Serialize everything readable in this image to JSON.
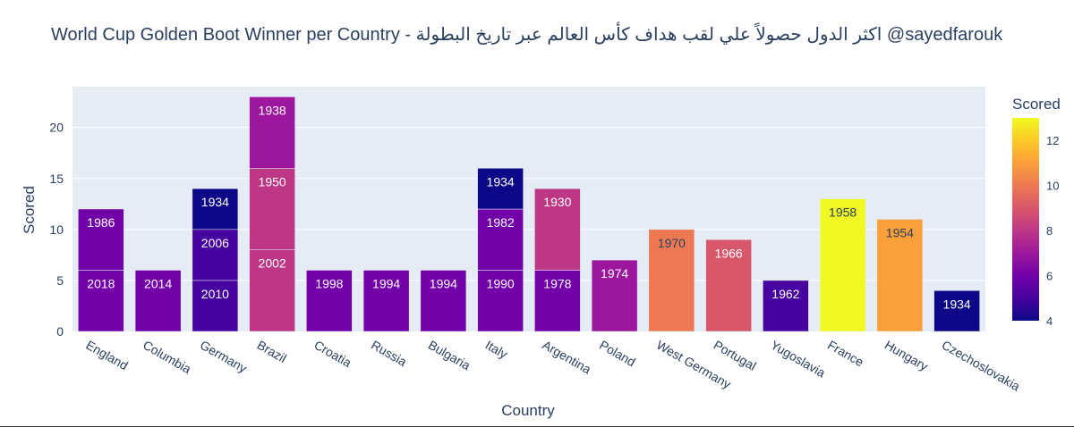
{
  "chart_data": {
    "type": "bar",
    "barmode": "stack",
    "title": "World Cup Golden Boot Winner per Country - اكثر الدول حصولاً علي لقب هداف كأس العالم عبر تاريخ البطولة @sayedfarouk",
    "xlabel": "Country",
    "ylabel": "Scored",
    "ylim": [
      0,
      24
    ],
    "yticks": [
      0,
      5,
      10,
      15,
      20
    ],
    "grid": true,
    "colorbar": {
      "title": "Scored",
      "min": 4,
      "max": 13,
      "ticks": [
        4,
        6,
        8,
        10,
        12
      ],
      "colorscale": "plasma"
    },
    "categories": [
      "England",
      "Columbia",
      "Germany",
      "Brazil",
      "Croatia",
      "Russia",
      "Bulgaria",
      "Italy",
      "Argentina",
      "Poland",
      "West Germany",
      "Portugal",
      "Yugoslavia",
      "France",
      "Hungary",
      "Czechoslovakia"
    ],
    "bars": [
      {
        "country": "England",
        "segments": [
          {
            "year": "2018",
            "value": 6
          },
          {
            "year": "1986",
            "value": 6
          }
        ]
      },
      {
        "country": "Columbia",
        "segments": [
          {
            "year": "2014",
            "value": 6
          }
        ]
      },
      {
        "country": "Germany",
        "segments": [
          {
            "year": "2010",
            "value": 5
          },
          {
            "year": "2006",
            "value": 5
          },
          {
            "year": "1934",
            "value": 4
          }
        ]
      },
      {
        "country": "Brazil",
        "segments": [
          {
            "year": "2002",
            "value": 8
          },
          {
            "year": "1950",
            "value": 8
          },
          {
            "year": "1938",
            "value": 7
          }
        ]
      },
      {
        "country": "Croatia",
        "segments": [
          {
            "year": "1998",
            "value": 6
          }
        ]
      },
      {
        "country": "Russia",
        "segments": [
          {
            "year": "1994",
            "value": 6
          }
        ]
      },
      {
        "country": "Bulgaria",
        "segments": [
          {
            "year": "1994",
            "value": 6
          }
        ]
      },
      {
        "country": "Italy",
        "segments": [
          {
            "year": "1990",
            "value": 6
          },
          {
            "year": "1982",
            "value": 6
          },
          {
            "year": "1934",
            "value": 4
          }
        ]
      },
      {
        "country": "Argentina",
        "segments": [
          {
            "year": "1978",
            "value": 6
          },
          {
            "year": "1930",
            "value": 8
          }
        ]
      },
      {
        "country": "Poland",
        "segments": [
          {
            "year": "1974",
            "value": 7
          }
        ]
      },
      {
        "country": "West Germany",
        "segments": [
          {
            "year": "1970",
            "value": 10
          }
        ]
      },
      {
        "country": "Portugal",
        "segments": [
          {
            "year": "1966",
            "value": 9
          }
        ]
      },
      {
        "country": "Yugoslavia",
        "segments": [
          {
            "year": "1962",
            "value": 5
          }
        ]
      },
      {
        "country": "France",
        "segments": [
          {
            "year": "1958",
            "value": 13
          }
        ]
      },
      {
        "country": "Hungary",
        "segments": [
          {
            "year": "1954",
            "value": 11
          }
        ]
      },
      {
        "country": "Czechoslovakia",
        "segments": [
          {
            "year": "1934",
            "value": 4
          }
        ]
      }
    ]
  }
}
